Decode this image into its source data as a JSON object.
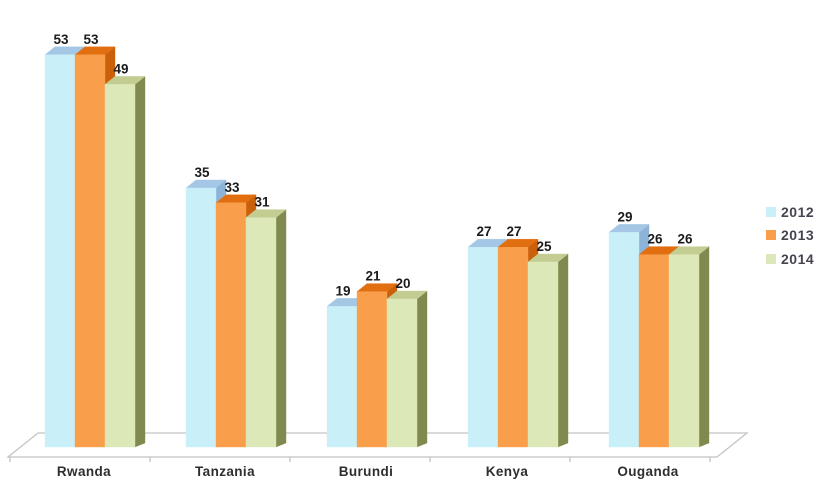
{
  "chart_data": {
    "type": "bar",
    "style": "3d-clustered-column",
    "title": "",
    "xlabel": "",
    "ylabel": "",
    "ylim": [
      0,
      55
    ],
    "grid": false,
    "axes_shown": "x-baseline-only",
    "legend_position": "right",
    "value_labels_shown": true,
    "categories": [
      "Rwanda",
      "Tanzania",
      "Burundi",
      "Kenya",
      "Ouganda"
    ],
    "series": [
      {
        "name": "2012",
        "values": [
          53,
          35,
          19,
          27,
          29
        ],
        "color": "#c9f0f8",
        "top_color": "#a3c7e5",
        "side_color": "#8db3d8"
      },
      {
        "name": "2013",
        "values": [
          53,
          33,
          21,
          27,
          26
        ],
        "color": "#f99f4b",
        "top_color": "#e16f10",
        "side_color": "#cb600b"
      },
      {
        "name": "2014",
        "values": [
          49,
          31,
          20,
          25,
          26
        ],
        "color": "#dde8b8",
        "top_color": "#c3cd92",
        "side_color": "#808a4e"
      }
    ],
    "colors": {
      "floor_line": "#c4c4c4",
      "value_label": "#1b1b1b",
      "category_label": "#2e2e2e",
      "legend_text": "#484351",
      "background": "#ffffff"
    }
  }
}
